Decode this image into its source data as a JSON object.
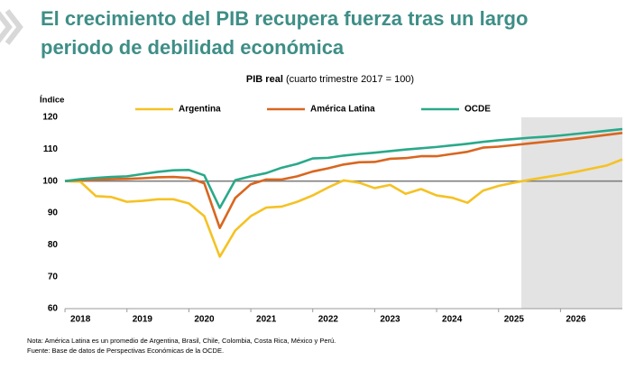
{
  "chart_data": {
    "type": "line",
    "title": [
      "El crecimiento del PIB recupera fuerza tras un largo",
      "periodo de debilidad económica"
    ],
    "subtitle_bold": "PIB real",
    "subtitle": "(cuarto trimestre 2017 = 100)",
    "y_label": "Índice",
    "categories": [
      null,
      "2018",
      null,
      null,
      null,
      "2019",
      null,
      null,
      null,
      "2020",
      null,
      null,
      null,
      "2021",
      null,
      null,
      null,
      "2022",
      null,
      null,
      null,
      "2023",
      null,
      null,
      null,
      "2024",
      null,
      null,
      null,
      "2025",
      null,
      null,
      null,
      "2026",
      null,
      null,
      null
    ],
    "series": [
      {
        "name": "Argentina",
        "color": "#f5c224",
        "values": [
          100,
          99.8,
          95.3,
          95,
          93.5,
          93.8,
          94.3,
          94.3,
          93,
          89,
          76.3,
          84.5,
          89,
          91.7,
          92,
          93.5,
          95.5,
          98,
          100.2,
          99.5,
          97.8,
          98.8,
          96,
          97.5,
          95.5,
          94.8,
          93.2,
          97,
          98.5,
          99.5,
          100.4,
          101.2,
          102,
          102.9,
          103.9,
          104.9,
          106.8
        ]
      },
      {
        "name": "América Latina",
        "color": "#d9661f",
        "values": [
          100,
          100.3,
          100.5,
          100.6,
          100.7,
          100.9,
          101.2,
          101.3,
          101,
          99.3,
          85.3,
          94.7,
          99,
          100.5,
          100.5,
          101.5,
          103,
          104,
          105.2,
          105.9,
          106,
          107,
          107.2,
          107.8,
          107.8,
          108.5,
          109.2,
          110.5,
          110.8,
          111.3,
          111.8,
          112.3,
          112.8,
          113.3,
          113.9,
          114.5,
          115.1
        ]
      },
      {
        "name": "OCDE",
        "color": "#2aa98a",
        "values": [
          100,
          100.6,
          101,
          101.3,
          101.5,
          102.2,
          102.9,
          103.4,
          103.5,
          101.8,
          91.6,
          100.3,
          101.5,
          102.5,
          104.2,
          105.4,
          107.1,
          107.3,
          108,
          108.5,
          108.9,
          109.4,
          109.9,
          110.3,
          110.7,
          111.2,
          111.7,
          112.3,
          112.8,
          113.2,
          113.6,
          113.9,
          114.3,
          114.8,
          115.3,
          115.8,
          116.3
        ]
      }
    ],
    "reference_line": 100,
    "ylim": [
      60,
      120
    ],
    "yticks": [
      60,
      70,
      80,
      90,
      100,
      110,
      120
    ],
    "notes": [
      "Nota: América Latina es un promedio de Argentina, Brasil, Chile, Colombia, Costa Rica, México y Perú.",
      "Fuente: Base de datos de Perspectivas Económicas de la OCDE."
    ]
  }
}
